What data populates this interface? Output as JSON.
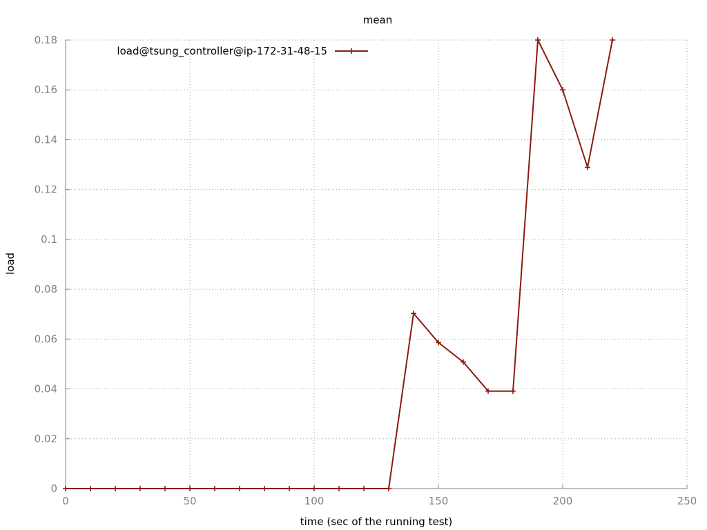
{
  "chart_data": {
    "type": "line",
    "title": "mean",
    "xlabel": "time (sec of the running test)",
    "ylabel": "load",
    "xlim": [
      0,
      250
    ],
    "ylim": [
      0,
      0.18
    ],
    "xticks": [
      0,
      50,
      100,
      150,
      200,
      250
    ],
    "yticks": [
      0,
      0.02,
      0.04,
      0.06,
      0.08,
      0.1,
      0.12,
      0.14,
      0.16,
      0.18
    ],
    "xtick_labels": [
      "0",
      "50",
      "100",
      "150",
      "200",
      "250"
    ],
    "ytick_labels": [
      "0",
      "0.02",
      "0.04",
      "0.06",
      "0.08",
      "0.1",
      "0.12",
      "0.14",
      "0.16",
      "0.18"
    ],
    "grid": true,
    "legend_position": "top-left",
    "series": [
      {
        "name": "load@tsung_controller@ip-172-31-48-15",
        "color": "#8b1a0e",
        "marker": "plus",
        "x": [
          0,
          10,
          20,
          30,
          40,
          50,
          60,
          70,
          80,
          90,
          100,
          110,
          120,
          130,
          140,
          150,
          160,
          170,
          180,
          190,
          200,
          210,
          220
        ],
        "y": [
          0,
          0,
          0,
          0,
          0,
          0,
          0,
          0,
          0,
          0,
          0,
          0,
          0,
          0,
          0.0703,
          0.0586,
          0.0508,
          0.0391,
          0.0391,
          0.18,
          0.16,
          0.1289,
          0.18
        ]
      }
    ]
  }
}
